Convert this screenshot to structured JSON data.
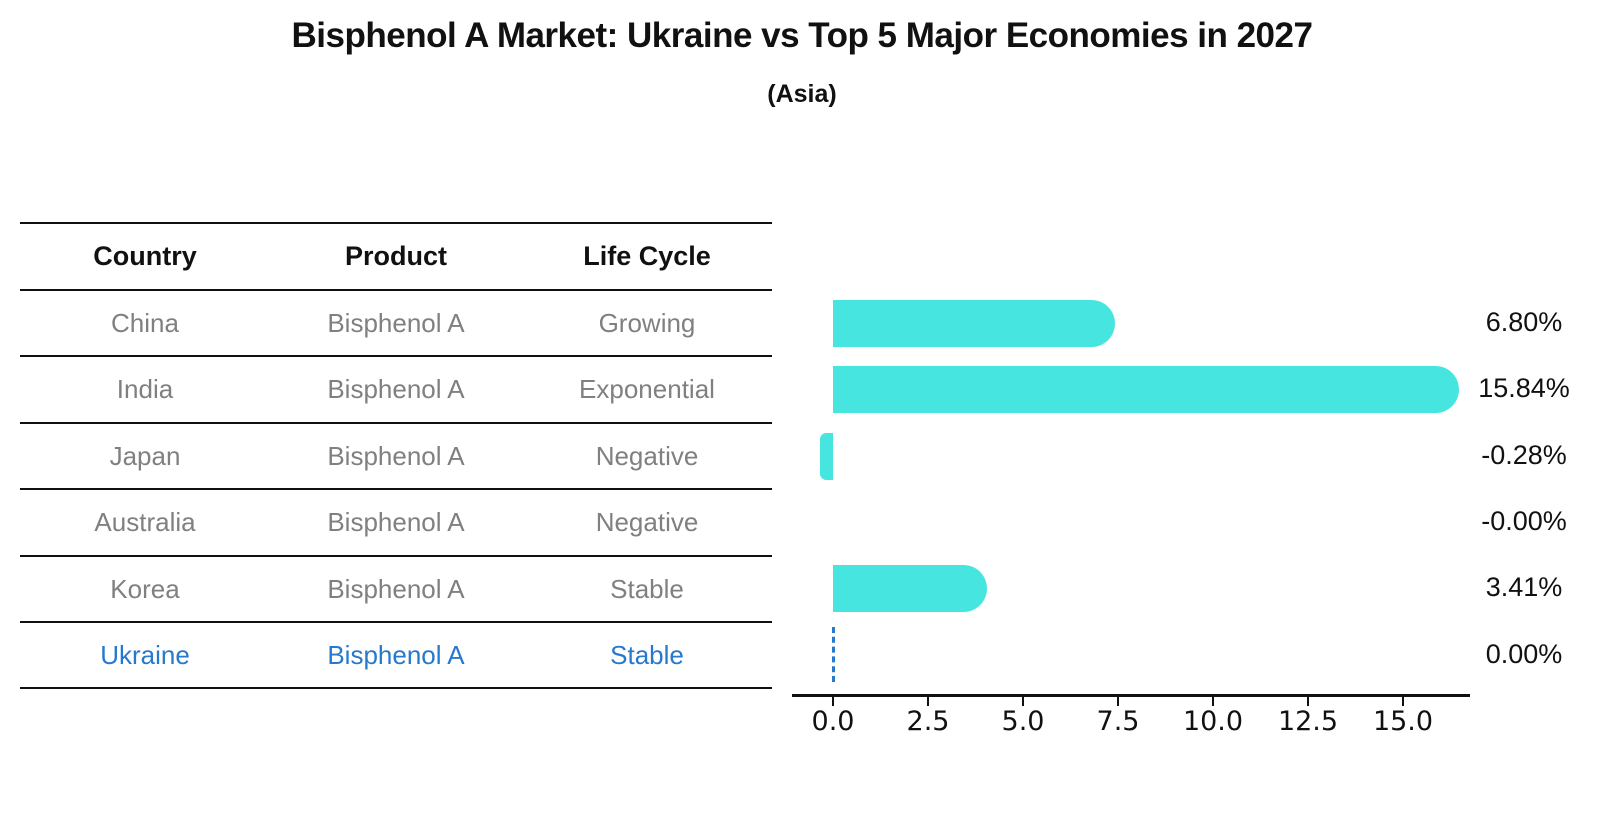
{
  "title": "Bisphenol A Market: Ukraine vs Top 5 Major Economies in 2027",
  "subtitle": "(Asia)",
  "table": {
    "headers": [
      "Country",
      "Product",
      "Life Cycle"
    ],
    "rows": [
      {
        "country": "China",
        "product": "Bisphenol A",
        "life_cycle": "Growing",
        "highlight": false
      },
      {
        "country": "India",
        "product": "Bisphenol A",
        "life_cycle": "Exponential",
        "highlight": false
      },
      {
        "country": "Japan",
        "product": "Bisphenol A",
        "life_cycle": "Negative",
        "highlight": false
      },
      {
        "country": "Australia",
        "product": "Bisphenol A",
        "life_cycle": "Negative",
        "highlight": false
      },
      {
        "country": "Korea",
        "product": "Bisphenol A",
        "life_cycle": "Stable",
        "highlight": false
      },
      {
        "country": "Ukraine",
        "product": "Bisphenol A",
        "life_cycle": "Stable",
        "highlight": true
      }
    ]
  },
  "chart_data": {
    "type": "bar",
    "orientation": "horizontal",
    "title": "Bisphenol A Market: Ukraine vs Top 5 Major Economies in 2027",
    "subtitle": "(Asia)",
    "categories": [
      "China",
      "India",
      "Japan",
      "Australia",
      "Korea",
      "Ukraine"
    ],
    "values": [
      6.8,
      15.84,
      -0.28,
      -0.0,
      3.41,
      0.0
    ],
    "value_labels": [
      "6.80%",
      "15.84%",
      "-0.28%",
      "-0.00%",
      "3.41%",
      "0.00%"
    ],
    "xlabel": "",
    "ylabel": "",
    "xlim": [
      -1.08,
      16.76
    ],
    "x_ticks": [
      0,
      2.5,
      5,
      7.5,
      10,
      12.5,
      15
    ],
    "x_tick_labels": [
      "0.0",
      "2.5",
      "5.0",
      "7.5",
      "10.0",
      "12.5",
      "15.0"
    ],
    "grid": false,
    "legend": null,
    "highlight_category": "Ukraine",
    "highlight_marker": "dashed-line-at-zero"
  },
  "colors": {
    "bar": "#46e5e0",
    "highlight": "#2679cc",
    "row_text": "#808080",
    "header_text": "#111111",
    "axis": "#111111",
    "background": "#ffffff"
  }
}
